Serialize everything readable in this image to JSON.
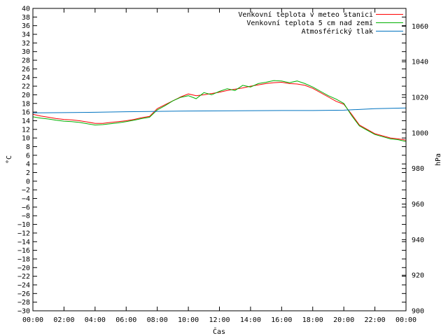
{
  "chart_data": {
    "type": "line",
    "xlabel": "Čas",
    "ylabel": "°C",
    "y2label": "hPa",
    "x_ticks": [
      "00:00",
      "02:00",
      "04:00",
      "06:00",
      "08:00",
      "10:00",
      "12:00",
      "14:00",
      "16:00",
      "18:00",
      "20:00",
      "22:00",
      "00:00"
    ],
    "xlim_hours": [
      0,
      24
    ],
    "ylim": [
      -30,
      40
    ],
    "y_ticks": [
      40,
      38,
      36,
      34,
      32,
      30,
      28,
      26,
      24,
      22,
      20,
      18,
      16,
      14,
      12,
      10,
      8,
      6,
      4,
      2,
      0,
      -2,
      -4,
      -6,
      -8,
      -10,
      -12,
      -14,
      -16,
      -18,
      -20,
      -22,
      -24,
      -26,
      -28,
      -30
    ],
    "y2lim": [
      900,
      1070
    ],
    "y2_ticks": [
      1060,
      1040,
      1020,
      1000,
      980,
      960,
      940,
      920,
      900
    ],
    "grid": false,
    "legend_position": "top-right",
    "series": [
      {
        "name": "Venkovní teplota v meteo stanici",
        "color": "#ff0000",
        "axis": "left",
        "x": [
          0,
          0.5,
          1,
          1.5,
          2,
          2.5,
          3,
          3.5,
          4,
          4.5,
          5,
          5.5,
          6,
          6.5,
          7,
          7.5,
          8,
          8.5,
          9,
          9.5,
          10,
          10.5,
          11,
          11.5,
          12,
          12.5,
          13,
          13.5,
          14,
          14.5,
          15,
          15.5,
          16,
          16.5,
          17,
          17.5,
          18,
          18.5,
          19,
          19.5,
          20,
          20.5,
          21,
          21.5,
          22,
          22.5,
          23,
          23.5,
          24
        ],
        "y": [
          15.5,
          15.1,
          14.8,
          14.5,
          14.3,
          14.2,
          14.0,
          13.7,
          13.4,
          13.4,
          13.6,
          13.8,
          14.0,
          14.3,
          14.7,
          15.0,
          16.8,
          17.7,
          18.6,
          19.5,
          20.2,
          19.8,
          20.0,
          20.3,
          20.6,
          21.0,
          21.3,
          21.6,
          22.0,
          22.3,
          22.6,
          22.8,
          22.9,
          22.6,
          22.5,
          22.2,
          21.5,
          20.5,
          19.5,
          18.5,
          17.8,
          15.5,
          13.0,
          12.0,
          11.0,
          10.5,
          10.0,
          9.8,
          9.5
        ]
      },
      {
        "name": "Venkovní teplota 5 cm nad zemí",
        "color": "#00b000",
        "axis": "left",
        "x": [
          0,
          0.5,
          1,
          1.5,
          2,
          2.5,
          3,
          3.5,
          4,
          4.5,
          5,
          5.5,
          6,
          6.5,
          7,
          7.5,
          8,
          8.5,
          9,
          9.5,
          10,
          10.5,
          11,
          11.5,
          12,
          12.5,
          13,
          13.5,
          14,
          14.5,
          15,
          15.5,
          16,
          16.5,
          17,
          17.5,
          18,
          18.5,
          19,
          19.5,
          20,
          20.5,
          21,
          21.5,
          22,
          22.5,
          23,
          23.5,
          24
        ],
        "y": [
          14.9,
          14.6,
          14.4,
          14.1,
          13.9,
          13.8,
          13.6,
          13.3,
          13.0,
          13.1,
          13.3,
          13.5,
          13.8,
          14.1,
          14.5,
          14.8,
          16.5,
          17.5,
          18.6,
          19.4,
          19.8,
          19.1,
          20.5,
          20.0,
          20.8,
          21.4,
          21.0,
          22.2,
          21.8,
          22.6,
          22.9,
          23.3,
          23.2,
          22.8,
          23.2,
          22.6,
          21.8,
          20.8,
          19.8,
          19.0,
          18.0,
          15.2,
          12.8,
          11.8,
          10.8,
          10.3,
          9.8,
          9.6,
          9.2
        ]
      },
      {
        "name": "Atmosférický tlak",
        "color": "#0073c0",
        "axis": "right",
        "x": [
          0,
          2,
          4,
          6,
          8,
          10,
          12,
          14,
          16,
          18,
          20,
          22,
          24
        ],
        "y": [
          1011.3,
          1011.4,
          1011.6,
          1011.9,
          1012.1,
          1012.3,
          1012.4,
          1012.5,
          1012.6,
          1012.6,
          1012.8,
          1013.6,
          1014.0
        ]
      }
    ]
  }
}
